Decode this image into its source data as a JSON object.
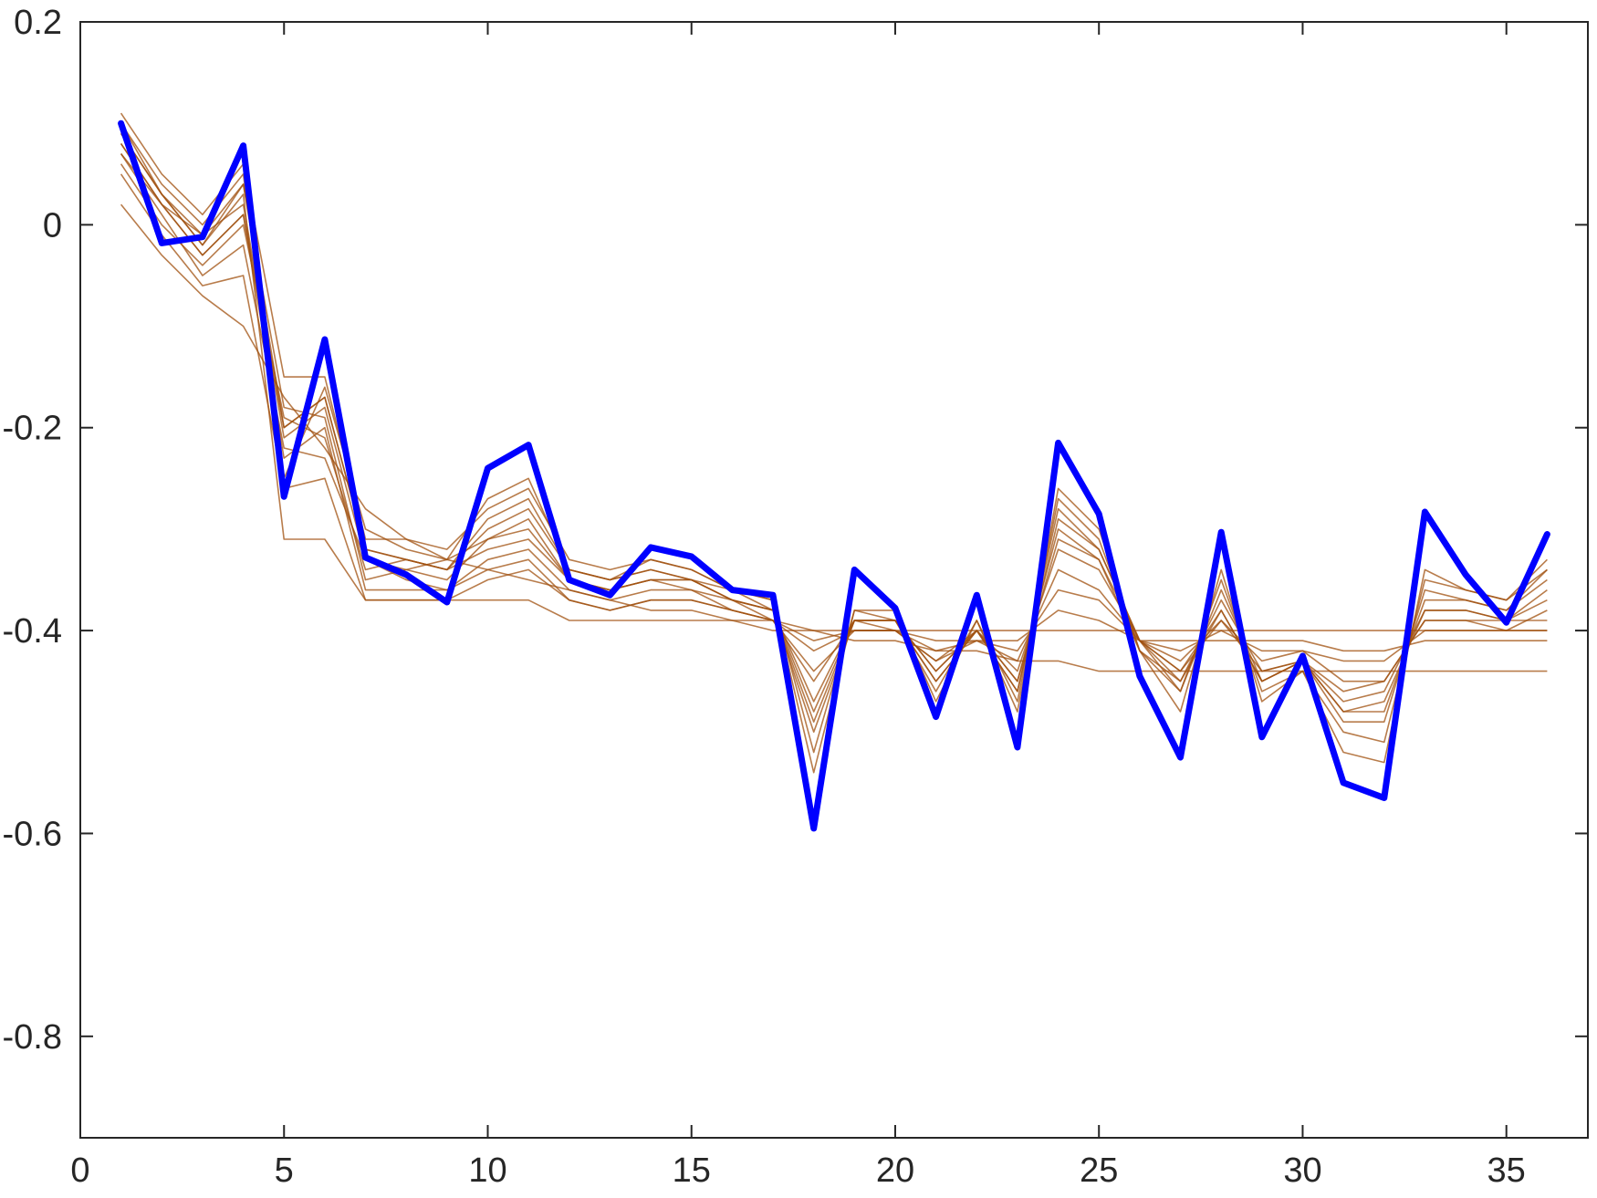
{
  "chart_data": {
    "type": "line",
    "title": "",
    "xlabel": "",
    "ylabel": "",
    "xlim": [
      0,
      37
    ],
    "ylim": [
      -0.9,
      0.2
    ],
    "xticks": [
      0,
      5,
      10,
      15,
      20,
      25,
      30,
      35
    ],
    "yticks": [
      0.2,
      0,
      -0.2,
      -0.4,
      -0.6,
      -0.8
    ],
    "xtick_labels": [
      "0",
      "5",
      "10",
      "15",
      "20",
      "25",
      "30",
      "35"
    ],
    "ytick_labels": [
      "0.2",
      "0",
      "-0.2",
      "-0.4",
      "-0.6",
      "-0.8"
    ],
    "grid": false,
    "legend": "none",
    "colors": {
      "highlight": "#0000ff",
      "ensemble": "#a0500f",
      "axes": "#262626"
    },
    "x": [
      1,
      2,
      3,
      4,
      5,
      6,
      7,
      8,
      9,
      10,
      11,
      12,
      13,
      14,
      15,
      16,
      17,
      18,
      19,
      20,
      21,
      22,
      23,
      24,
      25,
      26,
      27,
      28,
      29,
      30,
      31,
      32,
      33,
      34,
      35,
      36
    ],
    "highlight_series": {
      "values": [
        0.1,
        -0.018,
        -0.012,
        0.078,
        -0.268,
        -0.113,
        -0.328,
        -0.345,
        -0.372,
        -0.24,
        -0.217,
        -0.35,
        -0.365,
        -0.318,
        -0.327,
        -0.36,
        -0.365,
        -0.595,
        -0.34,
        -0.378,
        -0.485,
        -0.365,
        -0.515,
        -0.215,
        -0.285,
        -0.445,
        -0.525,
        -0.303,
        -0.505,
        -0.425,
        -0.55,
        -0.565,
        -0.283,
        -0.345,
        -0.392,
        -0.305
      ]
    },
    "ensemble_series": [
      {
        "values": [
          0.08,
          0.02,
          -0.03,
          0.01,
          -0.2,
          -0.17,
          -0.32,
          -0.33,
          -0.34,
          -0.3,
          -0.28,
          -0.34,
          -0.35,
          -0.34,
          -0.35,
          -0.37,
          -0.38,
          -0.5,
          -0.39,
          -0.39,
          -0.45,
          -0.4,
          -0.46,
          -0.29,
          -0.32,
          -0.41,
          -0.45,
          -0.37,
          -0.44,
          -0.43,
          -0.48,
          -0.48,
          -0.37,
          -0.37,
          -0.38,
          -0.35
        ]
      },
      {
        "values": [
          0.09,
          0.03,
          -0.02,
          0.04,
          -0.18,
          -0.19,
          -0.35,
          -0.34,
          -0.33,
          -0.31,
          -0.3,
          -0.35,
          -0.36,
          -0.35,
          -0.36,
          -0.37,
          -0.39,
          -0.45,
          -0.39,
          -0.4,
          -0.43,
          -0.4,
          -0.44,
          -0.32,
          -0.34,
          -0.41,
          -0.44,
          -0.39,
          -0.44,
          -0.43,
          -0.46,
          -0.45,
          -0.39,
          -0.39,
          -0.4,
          -0.38
        ]
      },
      {
        "values": [
          0.07,
          0.01,
          -0.05,
          -0.02,
          -0.22,
          -0.23,
          -0.33,
          -0.35,
          -0.36,
          -0.33,
          -0.32,
          -0.36,
          -0.37,
          -0.36,
          -0.36,
          -0.38,
          -0.39,
          -0.42,
          -0.4,
          -0.4,
          -0.42,
          -0.41,
          -0.42,
          -0.36,
          -0.37,
          -0.41,
          -0.42,
          -0.4,
          -0.42,
          -0.42,
          -0.43,
          -0.43,
          -0.4,
          -0.4,
          -0.4,
          -0.4
        ]
      },
      {
        "values": [
          0.1,
          0.04,
          0.0,
          0.05,
          -0.25,
          -0.16,
          -0.3,
          -0.32,
          -0.33,
          -0.27,
          -0.25,
          -0.34,
          -0.35,
          -0.33,
          -0.34,
          -0.36,
          -0.37,
          -0.54,
          -0.38,
          -0.38,
          -0.47,
          -0.39,
          -0.48,
          -0.26,
          -0.3,
          -0.42,
          -0.48,
          -0.34,
          -0.47,
          -0.44,
          -0.52,
          -0.53,
          -0.34,
          -0.36,
          -0.37,
          -0.33
        ]
      },
      {
        "values": [
          0.06,
          0.0,
          -0.04,
          0.0,
          -0.19,
          -0.21,
          -0.34,
          -0.33,
          -0.34,
          -0.32,
          -0.31,
          -0.35,
          -0.36,
          -0.35,
          -0.35,
          -0.37,
          -0.38,
          -0.47,
          -0.39,
          -0.39,
          -0.44,
          -0.4,
          -0.45,
          -0.31,
          -0.33,
          -0.41,
          -0.44,
          -0.38,
          -0.45,
          -0.43,
          -0.47,
          -0.46,
          -0.38,
          -0.38,
          -0.39,
          -0.37
        ]
      },
      {
        "values": [
          0.05,
          -0.01,
          -0.06,
          -0.05,
          -0.26,
          -0.25,
          -0.37,
          -0.37,
          -0.37,
          -0.35,
          -0.34,
          -0.37,
          -0.38,
          -0.37,
          -0.37,
          -0.38,
          -0.39,
          -0.41,
          -0.4,
          -0.4,
          -0.41,
          -0.41,
          -0.41,
          -0.38,
          -0.39,
          -0.41,
          -0.41,
          -0.41,
          -0.41,
          -0.41,
          -0.42,
          -0.42,
          -0.41,
          -0.41,
          -0.41,
          -0.41
        ]
      },
      {
        "values": [
          0.11,
          0.05,
          0.01,
          0.06,
          -0.15,
          -0.15,
          -0.31,
          -0.31,
          -0.32,
          -0.28,
          -0.26,
          -0.33,
          -0.34,
          -0.33,
          -0.34,
          -0.36,
          -0.37,
          -0.52,
          -0.38,
          -0.39,
          -0.46,
          -0.39,
          -0.47,
          -0.27,
          -0.31,
          -0.42,
          -0.46,
          -0.35,
          -0.46,
          -0.44,
          -0.5,
          -0.51,
          -0.35,
          -0.36,
          -0.37,
          -0.34
        ]
      },
      {
        "values": [
          0.08,
          0.02,
          -0.01,
          0.02,
          -0.21,
          -0.18,
          -0.33,
          -0.34,
          -0.35,
          -0.31,
          -0.29,
          -0.35,
          -0.36,
          -0.35,
          -0.35,
          -0.37,
          -0.38,
          -0.48,
          -0.39,
          -0.39,
          -0.44,
          -0.4,
          -0.45,
          -0.3,
          -0.33,
          -0.42,
          -0.45,
          -0.38,
          -0.45,
          -0.43,
          -0.48,
          -0.47,
          -0.38,
          -0.38,
          -0.39,
          -0.36
        ]
      },
      {
        "values": [
          0.02,
          -0.03,
          -0.07,
          -0.1,
          -0.17,
          -0.22,
          -0.28,
          -0.31,
          -0.33,
          -0.34,
          -0.35,
          -0.36,
          -0.37,
          -0.38,
          -0.38,
          -0.39,
          -0.4,
          -0.4,
          -0.41,
          -0.41,
          -0.42,
          -0.42,
          -0.43,
          -0.43,
          -0.44,
          -0.44,
          -0.44,
          -0.44,
          -0.44,
          -0.44,
          -0.44,
          -0.44,
          -0.44,
          -0.44,
          -0.44,
          -0.44
        ]
      },
      {
        "values": [
          0.09,
          0.03,
          -0.02,
          0.03,
          -0.31,
          -0.31,
          -0.37,
          -0.37,
          -0.37,
          -0.37,
          -0.37,
          -0.39,
          -0.39,
          -0.39,
          -0.39,
          -0.39,
          -0.39,
          -0.4,
          -0.4,
          -0.4,
          -0.4,
          -0.4,
          -0.4,
          -0.4,
          -0.4,
          -0.4,
          -0.4,
          -0.4,
          -0.4,
          -0.4,
          -0.4,
          -0.4,
          -0.4,
          -0.4,
          -0.4,
          -0.4
        ]
      },
      {
        "values": [
          0.07,
          0.02,
          -0.03,
          0.01,
          -0.23,
          -0.2,
          -0.36,
          -0.36,
          -0.36,
          -0.34,
          -0.33,
          -0.37,
          -0.38,
          -0.37,
          -0.37,
          -0.38,
          -0.39,
          -0.44,
          -0.4,
          -0.4,
          -0.43,
          -0.41,
          -0.43,
          -0.34,
          -0.36,
          -0.41,
          -0.43,
          -0.39,
          -0.43,
          -0.42,
          -0.45,
          -0.45,
          -0.39,
          -0.39,
          -0.39,
          -0.39
        ]
      },
      {
        "values": [
          0.1,
          0.03,
          -0.01,
          0.04,
          -0.2,
          -0.17,
          -0.32,
          -0.33,
          -0.34,
          -0.29,
          -0.27,
          -0.34,
          -0.35,
          -0.34,
          -0.35,
          -0.36,
          -0.38,
          -0.49,
          -0.39,
          -0.39,
          -0.45,
          -0.4,
          -0.46,
          -0.28,
          -0.32,
          -0.41,
          -0.46,
          -0.36,
          -0.45,
          -0.43,
          -0.49,
          -0.49,
          -0.36,
          -0.37,
          -0.38,
          -0.34
        ]
      }
    ]
  }
}
